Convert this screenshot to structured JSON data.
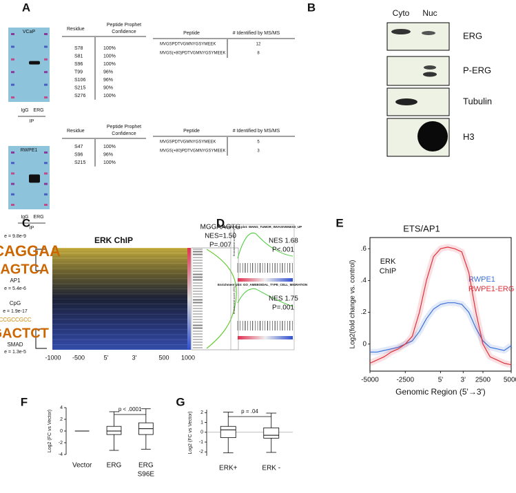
{
  "panel_labels": [
    "A",
    "B",
    "C",
    "D",
    "E",
    "F",
    "G"
  ],
  "panel_a": {
    "vcap": {
      "cell": "VCaP",
      "lanes": [
        "IgG",
        "ERG"
      ],
      "ip": "IP",
      "residue_header": "Residue",
      "conf_header": [
        "Peptide Prophet",
        "Confidence"
      ],
      "rows": [
        [
          "S78",
          "100%"
        ],
        [
          "S81",
          "100%"
        ],
        [
          "S96",
          "100%"
        ],
        [
          "T99",
          "96%"
        ],
        [
          "S106",
          "96%"
        ],
        [
          "S215",
          "90%"
        ],
        [
          "S276",
          "100%"
        ]
      ],
      "peptide_header": "Peptide",
      "count_header": "# Identified by MS/MS",
      "peptides": [
        [
          "MVGSPDTVGMNYGSYMEEK",
          "12"
        ],
        [
          "MVGS(+80)PDTVGMNYGSYMEEK",
          "8"
        ]
      ]
    },
    "rwpe1": {
      "cell": "RWPE1",
      "lanes": [
        "IgG",
        "ERG"
      ],
      "ip": "IP",
      "residue_header": "Residue",
      "conf_header": [
        "Peptide Prophet",
        "Confidence"
      ],
      "rows": [
        [
          "S47",
          "100%"
        ],
        [
          "S96",
          "96%"
        ],
        [
          "S215",
          "100%"
        ]
      ],
      "peptide_header": "Peptide",
      "count_header": "# Identified by MS/MS",
      "peptides": [
        [
          "MVGSPDTVGMNYGSYMEEK",
          "5"
        ],
        [
          "MVGS(+80)PDTVGMNYGSYMEEK",
          "3"
        ]
      ]
    }
  },
  "panel_b": {
    "columns": [
      "Cyto",
      "Nuc"
    ],
    "rows": [
      "ERG",
      "P-ERG",
      "Tubulin",
      "H3"
    ]
  },
  "panel_c": {
    "title": "ERK ChIP",
    "left": [
      "e = 9.8e-9",
      "GGCAGGAA",
      "TGAGTCA",
      "AP1",
      "e = 5.4e-6",
      "CpG",
      "e = 1.9e-17",
      "CCGCCGCC",
      "AGACTCT",
      "SMAD",
      "e = 1.3e-5"
    ],
    "right": [
      "MGGAAGTG",
      "NES=1.50",
      "P=.007"
    ],
    "xlabels": [
      "-1000",
      "-500",
      "5'",
      "3'",
      "500",
      "1000"
    ]
  },
  "panel_d": {
    "ylabel": "Enrichment score (ES)",
    "plots": [
      {
        "title": "Enrichment plot: WANG_TUMOR_INVASIVENESS_UP",
        "nes": "NES 1.68",
        "p": "P<.001"
      },
      {
        "title": "Enrichment plot: GO_AMEBOIDAL_TYPE_CELL_MIGRATION",
        "nes": "NES 1.75",
        "p": "P=.001"
      }
    ]
  },
  "chart_data": [
    {
      "type": "line",
      "title": "ETS/AP1",
      "xlabel": "Genomic Region (5'→3')",
      "ylabel": "Log2(fold change vs. control)",
      "annotation": [
        "ERK",
        "ChIP"
      ],
      "x": [
        0,
        5,
        10,
        15,
        20,
        25,
        30,
        35,
        40,
        45,
        50,
        55,
        60,
        65,
        70,
        75,
        80,
        85,
        90,
        95,
        100
      ],
      "xlim": [
        0,
        100
      ],
      "xticks": [
        {
          "value": 0,
          "label": "-5000"
        },
        {
          "value": 25,
          "label": "-2500"
        },
        {
          "value": 50,
          "label": "5'"
        },
        {
          "value": 66,
          "label": "3'"
        },
        {
          "value": 80,
          "label": "2500"
        },
        {
          "value": 100,
          "label": "5000"
        }
      ],
      "ylim": [
        -0.17,
        0.67
      ],
      "yticks": [
        0,
        {
          "value": 0.2,
          "label": ".2"
        },
        {
          "value": 0.4,
          "label": ".4"
        },
        {
          "value": 0.6,
          "label": ".6"
        }
      ],
      "series": [
        {
          "name": "RWPE1",
          "color": "#3a6fd8",
          "values": [
            -0.05,
            -0.05,
            -0.04,
            -0.03,
            -0.02,
            0,
            0.02,
            0.08,
            0.16,
            0.22,
            0.25,
            0.26,
            0.26,
            0.25,
            0.2,
            0.1,
            0.02,
            -0.02,
            -0.03,
            -0.04,
            -0.01
          ]
        },
        {
          "name": "RWPE1-ERG",
          "color": "#e0303a",
          "values": [
            -0.12,
            -0.1,
            -0.08,
            -0.05,
            -0.03,
            0,
            0.05,
            0.2,
            0.4,
            0.55,
            0.6,
            0.61,
            0.6,
            0.58,
            0.45,
            0.2,
            0,
            -0.08,
            -0.1,
            -0.12,
            -0.13
          ]
        }
      ]
    },
    {
      "type": "box",
      "ylabel": "Log2 (FC vs Vector)",
      "annotation": "p < .0001",
      "categories": [
        "Vector",
        "ERG",
        [
          "ERG",
          "S96E"
        ]
      ],
      "min": [
        0,
        -3.3,
        -3.1
      ],
      "q1": [
        0,
        -0.6,
        -0.6
      ],
      "median": [
        0,
        0,
        0.4
      ],
      "q3": [
        0,
        0.8,
        1.4
      ],
      "max": [
        0,
        3.3,
        3.8
      ],
      "ylim": [
        -4,
        4
      ],
      "yticks": [
        -4,
        -2,
        0,
        2,
        4
      ],
      "zero_line": false
    },
    {
      "type": "box",
      "ylabel": "Log2 (FC vs Vector)",
      "annotation": "p = .04",
      "categories": [
        "ERK+",
        "ERK -"
      ],
      "min": [
        -2.1,
        -2.05
      ],
      "q1": [
        -0.55,
        -0.6
      ],
      "median": [
        0.25,
        -0.3
      ],
      "q3": [
        0.6,
        0.45
      ],
      "max": [
        2.05,
        1.95
      ],
      "ylim": [
        -2.4,
        2.3
      ],
      "yticks": [
        -2,
        -1,
        0,
        1,
        2
      ],
      "zero_line": true
    }
  ]
}
